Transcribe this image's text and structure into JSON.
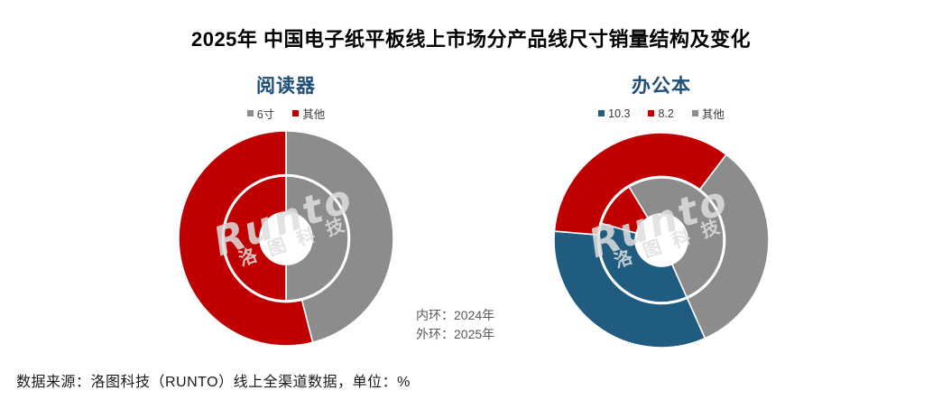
{
  "page": {
    "title": "2025年 中国电子纸平板线上市场分产品线尺寸销量结构及变化",
    "ring_note_line1": "内环：2024年",
    "ring_note_line2": "外环：2025年",
    "source_note": "数据来源：洛图科技（RUNTO）线上全渠道数据，单位：%",
    "watermark": {
      "en": "Runto",
      "cn": "洛图科技"
    }
  },
  "colors": {
    "subtitle_blue": "#1F4E79",
    "series_red": "#C00000",
    "series_gray": "#8C8C8C",
    "series_blue": "#1F5C80",
    "note_gray": "#595959"
  },
  "chart_data": [
    {
      "type": "pie",
      "variant": "double-ring-donut",
      "title": "阅读器",
      "unit": "%",
      "categories": [
        "6寸",
        "其他"
      ],
      "colors": [
        "#8C8C8C",
        "#C00000"
      ],
      "start_angle": 0,
      "rings": [
        {
          "name": "内环 2024年",
          "values": [
            50,
            50
          ]
        },
        {
          "name": "外环 2025年",
          "values": [
            46,
            54
          ]
        }
      ],
      "legend_position": "top"
    },
    {
      "type": "pie",
      "variant": "double-ring-donut",
      "title": "办公本",
      "unit": "%",
      "categories": [
        "10.3",
        "8.2",
        "其他"
      ],
      "colors": [
        "#1F5C80",
        "#C00000",
        "#8C8C8C"
      ],
      "start_angle": 156,
      "rings": [
        {
          "name": "内环 2024年",
          "values": [
            36,
            12,
            52
          ]
        },
        {
          "name": "外环 2025年",
          "values": [
            33,
            34,
            33
          ]
        }
      ],
      "legend_position": "top"
    }
  ]
}
